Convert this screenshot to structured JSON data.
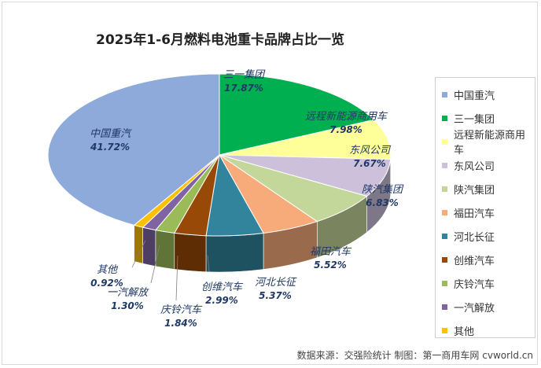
{
  "chart_data": {
    "type": "pie",
    "style": "3d",
    "title": "2025年1-6月燃料电池重卡品牌占比一览",
    "categories": [
      "中国重汽",
      "三一集团",
      "远程新能源商用车",
      "东风公司",
      "陕汽集团",
      "福田汽车",
      "河北长征",
      "创维汽车",
      "庆铃汽车",
      "一汽解放",
      "其他"
    ],
    "values": [
      41.72,
      17.87,
      7.98,
      7.67,
      6.83,
      5.52,
      5.37,
      2.99,
      1.84,
      1.3,
      0.92
    ],
    "value_labels": [
      "41.72%",
      "17.87%",
      "7.98%",
      "7.67%",
      "6.83%",
      "5.52%",
      "5.37%",
      "2.99%",
      "1.84%",
      "1.30%",
      "0.92%"
    ],
    "colors": [
      "#8eaadb",
      "#00b050",
      "#ffff99",
      "#ccc0da",
      "#c4d79b",
      "#f8ab7a",
      "#31849b",
      "#984807",
      "#9bbb59",
      "#8064a2",
      "#ffc000"
    ],
    "legend_position": "right"
  },
  "footer": {
    "source": "数据来源：交强险统计 制图：第一商用车网 cvworld.cn"
  }
}
